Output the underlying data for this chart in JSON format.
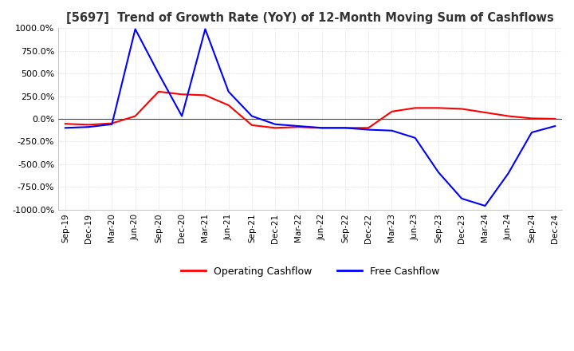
{
  "title": "[5697]  Trend of Growth Rate (YoY) of 12-Month Moving Sum of Cashflows",
  "title_fontsize": 10.5,
  "ylim": [
    -1000,
    1000
  ],
  "yticks": [
    1000,
    750,
    500,
    250,
    0,
    -250,
    -500,
    -750,
    -1000
  ],
  "background_color": "#ffffff",
  "grid_color": "#c8c8c8",
  "operating_color": "#ff0000",
  "free_color": "#0000ff",
  "legend_labels": [
    "Operating Cashflow",
    "Free Cashflow"
  ],
  "x_labels": [
    "Sep-19",
    "Dec-19",
    "Mar-20",
    "Jun-20",
    "Sep-20",
    "Dec-20",
    "Mar-21",
    "Jun-21",
    "Sep-21",
    "Dec-21",
    "Mar-22",
    "Jun-22",
    "Sep-22",
    "Dec-22",
    "Mar-23",
    "Jun-23",
    "Sep-23",
    "Dec-23",
    "Mar-24",
    "Jun-24",
    "Sep-24",
    "Dec-24"
  ],
  "operating_cashflow": [
    -55,
    -65,
    -50,
    30,
    300,
    270,
    260,
    150,
    -70,
    -100,
    -90,
    -100,
    -100,
    -100,
    80,
    120,
    120,
    110,
    70,
    30,
    5,
    0
  ],
  "free_cashflow": [
    -100,
    -90,
    -60,
    990,
    500,
    30,
    990,
    300,
    30,
    -60,
    -80,
    -100,
    -100,
    -120,
    -130,
    -210,
    -590,
    -880,
    -960,
    -600,
    -150,
    -80
  ]
}
